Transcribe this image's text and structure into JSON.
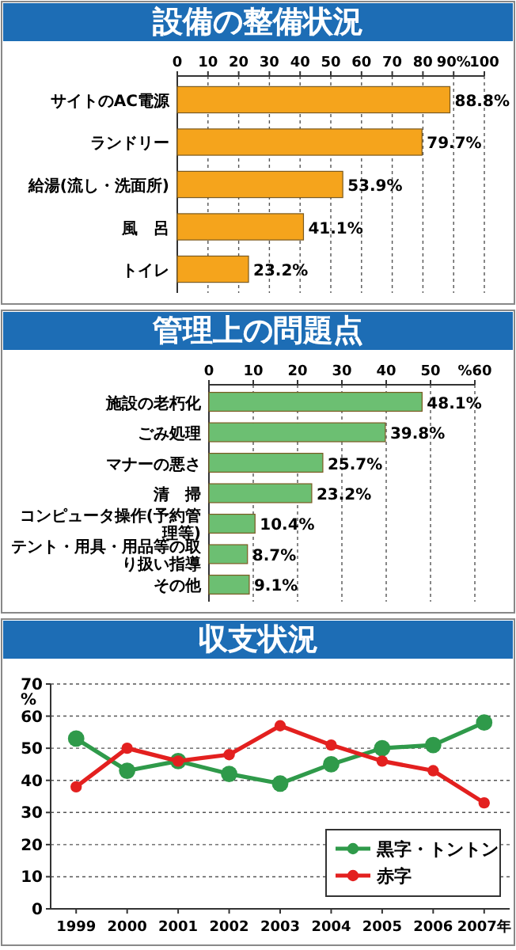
{
  "chart_data": [
    {
      "type": "bar",
      "title": "設備の整備状況",
      "orientation": "horizontal",
      "categories": [
        "サイトのAC電源",
        "ランドリー",
        "給湯(流し・洗面所)",
        "風　呂",
        "トイレ"
      ],
      "values": [
        88.8,
        79.7,
        53.9,
        41.1,
        23.2
      ],
      "value_labels": [
        "88.8%",
        "79.7%",
        "53.9%",
        "41.1%",
        "23.2%"
      ],
      "color": "#f5a41c",
      "xlim": [
        0,
        100
      ],
      "xticks": [
        0,
        10,
        20,
        30,
        40,
        50,
        60,
        70,
        80,
        {
          "value": 90,
          "label": "90%"
        },
        100
      ],
      "grid": "x"
    },
    {
      "type": "bar",
      "title": "管理上の問題点",
      "orientation": "horizontal",
      "categories": [
        "施設の老朽化",
        "ごみ処理",
        "マナーの悪さ",
        "清　掃",
        "コンピュータ操作(予約管理等)",
        "テント・用具・用品等の取り扱い指導",
        "その他"
      ],
      "values": [
        48.1,
        39.8,
        25.7,
        23.2,
        10.4,
        8.7,
        9.1
      ],
      "value_labels": [
        "48.1%",
        "39.8%",
        "25.7%",
        "23.2%",
        "10.4%",
        "8.7%",
        "9.1%"
      ],
      "color": "#6cbf72",
      "xlim": [
        0,
        60
      ],
      "xticks": [
        0,
        10,
        20,
        30,
        40,
        50,
        {
          "value": 60,
          "label": "%60"
        }
      ],
      "grid": "x"
    },
    {
      "type": "line",
      "title": "収支状況",
      "categories": [
        "1999",
        "2000",
        "2001",
        "2002",
        "2003",
        "2004",
        "2005",
        "2006",
        "2007年"
      ],
      "ylabel": "%",
      "ylim": [
        0,
        70
      ],
      "yticks": [
        0,
        10,
        20,
        30,
        40,
        50,
        60,
        70
      ],
      "grid": "y",
      "legend": "bottom right",
      "marker": "circle",
      "series": [
        {
          "name": "黒字・トントン",
          "color": "#2f9a4a",
          "values": [
            53,
            43,
            46,
            42,
            39,
            45,
            50,
            51,
            58
          ]
        },
        {
          "name": "赤字",
          "color": "#e3201f",
          "values": [
            38,
            50,
            46,
            48,
            57,
            51,
            46,
            43,
            33
          ]
        }
      ]
    }
  ]
}
